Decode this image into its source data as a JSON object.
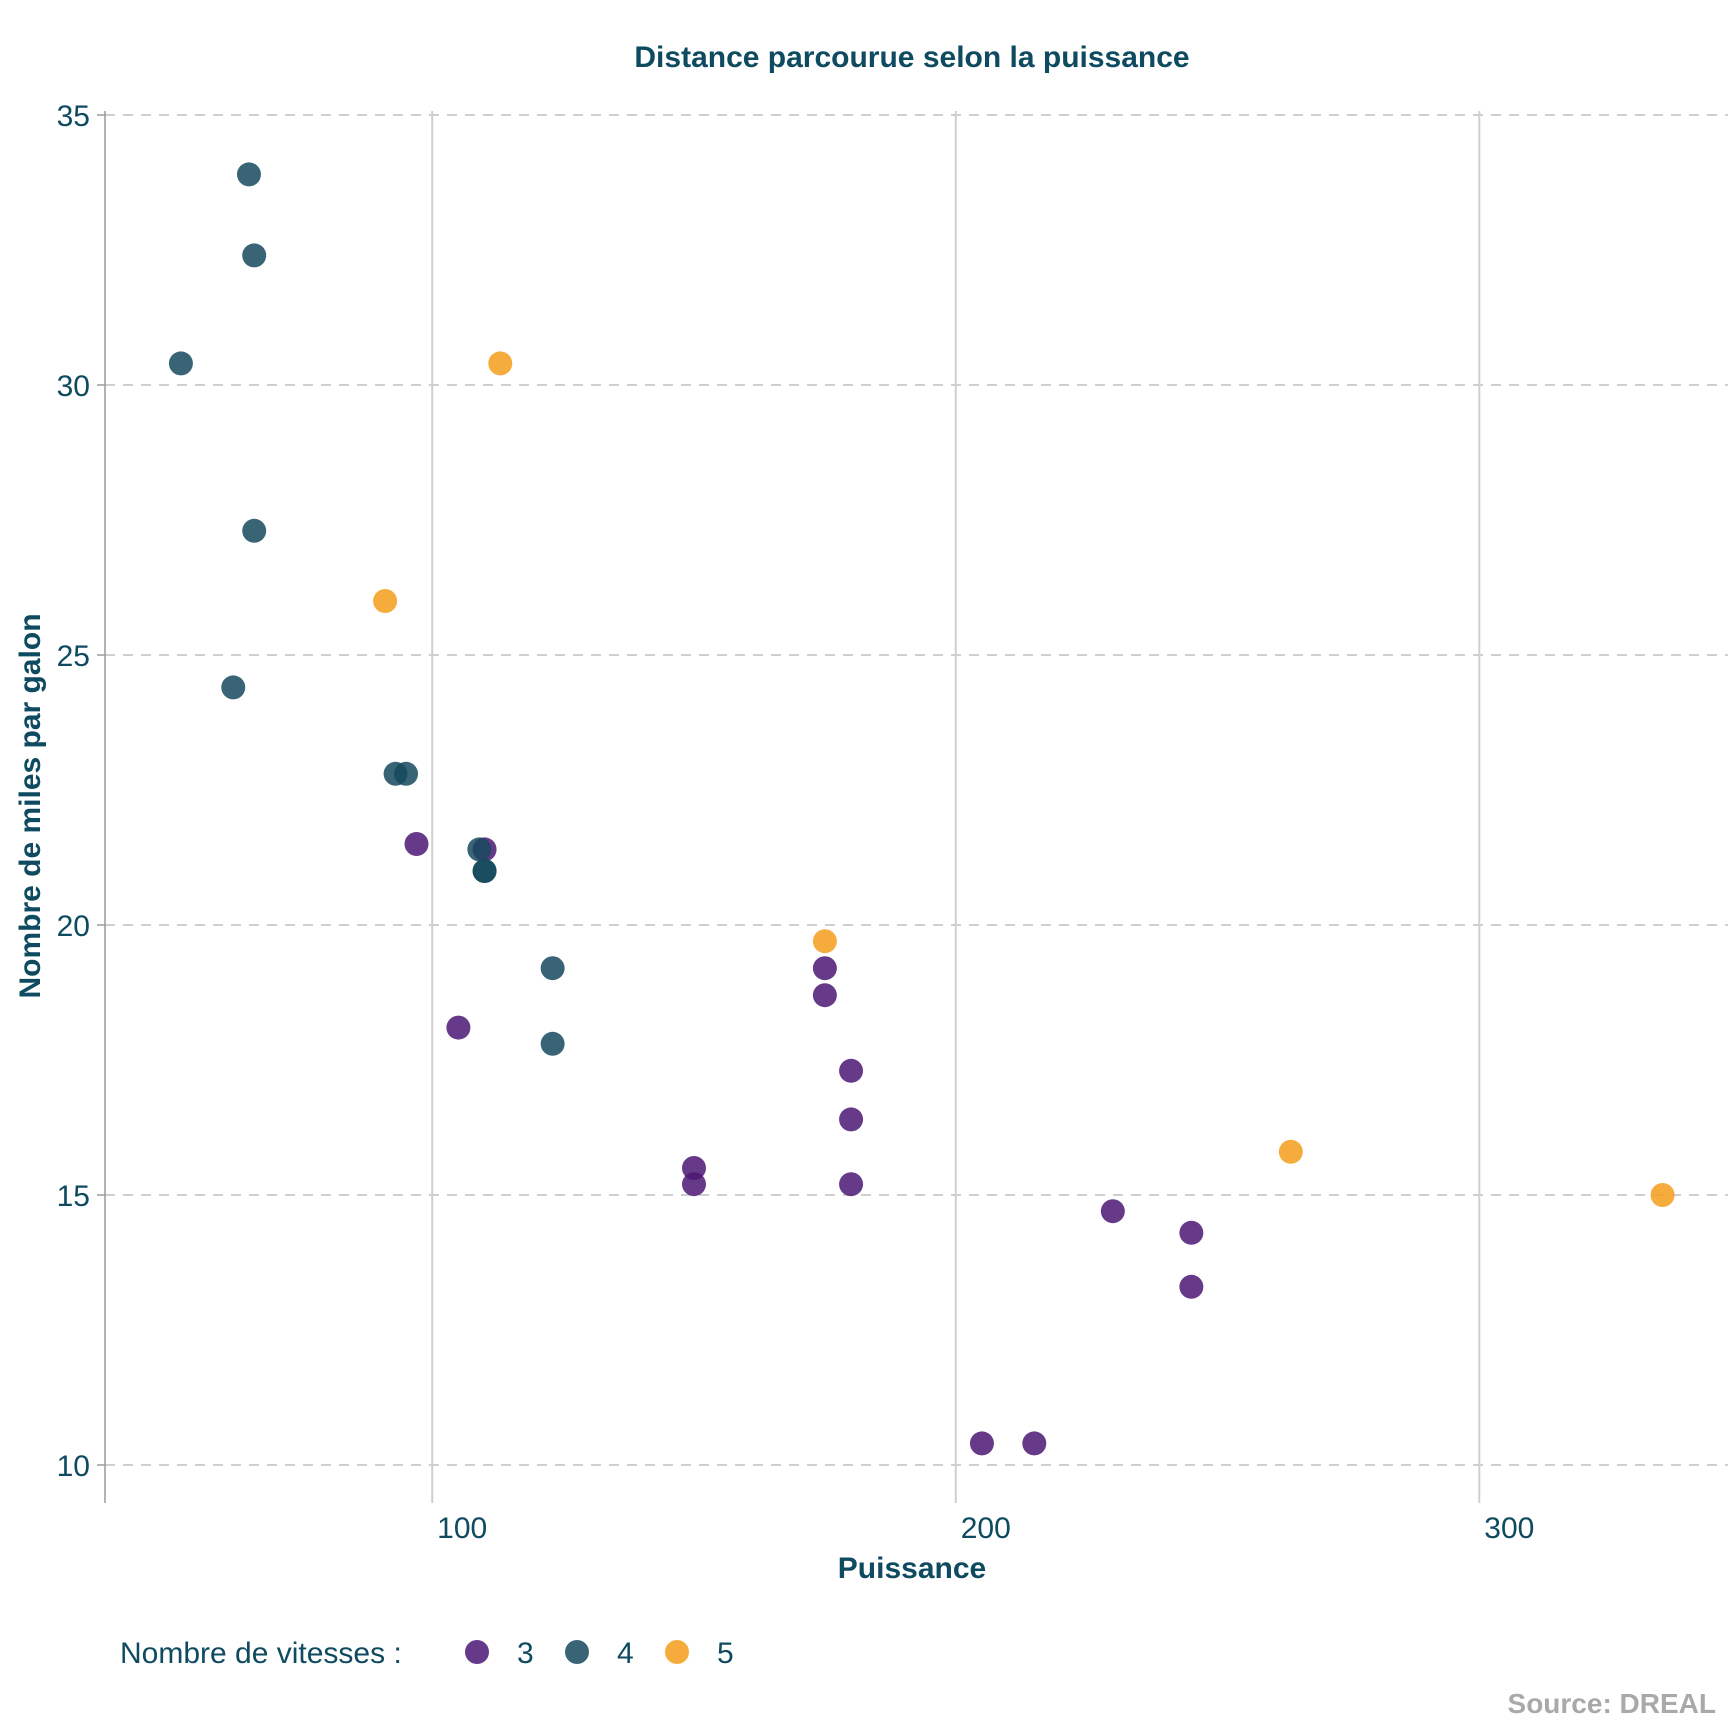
{
  "chart_data": {
    "type": "scatter",
    "title": "Distance parcourue selon la puissance",
    "xlabel": "Puissance",
    "ylabel": "Nombre de miles par galon",
    "caption": "Source: DREAL",
    "xlim": [
      37.5,
      347.5
    ],
    "ylim": [
      9.5,
      35
    ],
    "x_ticks": [
      100,
      200,
      300
    ],
    "y_ticks": [
      10,
      15,
      20,
      25,
      30,
      35
    ],
    "grid": {
      "x_major": "solid",
      "y_major": "dashed"
    },
    "legend": {
      "title": "Nombre de vitesses :",
      "position": "bottom-left",
      "entries": [
        {
          "label": "3",
          "color": "#4b1674"
        },
        {
          "label": "4",
          "color": "#16495e"
        },
        {
          "label": "5",
          "color": "#f59e1a"
        }
      ]
    },
    "series": [
      {
        "name": "3",
        "color": "#4b1674",
        "points": [
          [
            110,
            21.4
          ],
          [
            175,
            18.7
          ],
          [
            105,
            18.1
          ],
          [
            180,
            16.4
          ],
          [
            180,
            17.3
          ],
          [
            180,
            15.2
          ],
          [
            205,
            10.4
          ],
          [
            215,
            10.4
          ],
          [
            230,
            14.7
          ],
          [
            97,
            21.5
          ],
          [
            150,
            15.5
          ],
          [
            150,
            15.2
          ],
          [
            245,
            13.3
          ],
          [
            245,
            14.3
          ],
          [
            175,
            19.2
          ]
        ]
      },
      {
        "name": "4",
        "color": "#16495e",
        "points": [
          [
            110,
            21.0
          ],
          [
            110,
            21.0
          ],
          [
            93,
            22.8
          ],
          [
            62,
            24.4
          ],
          [
            95,
            22.8
          ],
          [
            123,
            19.2
          ],
          [
            123,
            17.8
          ],
          [
            66,
            32.4
          ],
          [
            52,
            30.4
          ],
          [
            65,
            33.9
          ],
          [
            66,
            27.3
          ],
          [
            109,
            21.4
          ]
        ]
      },
      {
        "name": "5",
        "color": "#f59e1a",
        "points": [
          [
            91,
            26.0
          ],
          [
            113,
            30.4
          ],
          [
            264,
            15.8
          ],
          [
            175,
            19.7
          ],
          [
            335,
            15.0
          ]
        ]
      }
    ]
  }
}
